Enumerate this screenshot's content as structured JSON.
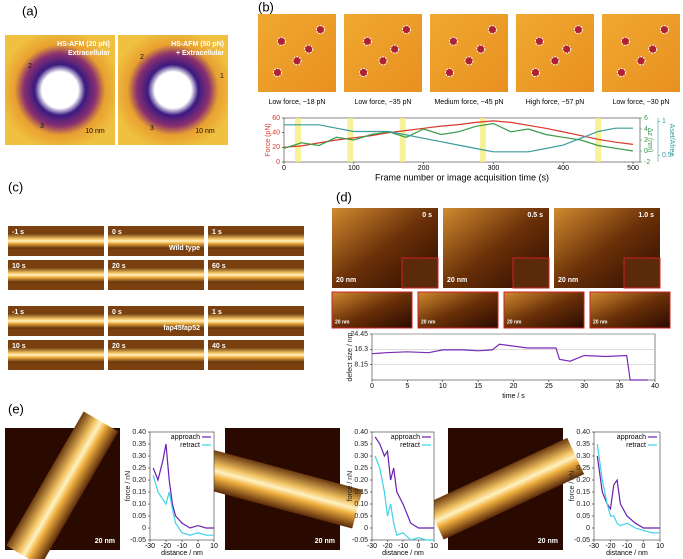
{
  "panels": {
    "a": {
      "label": "(a)",
      "texts": [
        "HS-AFM (20 pN)",
        "Extracellular",
        "10 nm",
        "2",
        "3",
        "HS-AFM (50 pN)",
        "+ Extracellular",
        "2",
        "1",
        "3",
        "10 nm"
      ]
    },
    "b": {
      "label": "(b)",
      "captions": [
        "Low force, ~18 pN",
        "Low force, ~35 pN",
        "Medium force, ~45 pN",
        "High force, ~57 pN",
        "Low force, ~30 pN"
      ]
    },
    "c": {
      "label": "(c)",
      "group1": [
        "-1 s",
        "0 s",
        "1 s",
        "10 s",
        "20 s",
        "60 s"
      ],
      "group1_name": "Wild type",
      "group2": [
        "-1 s",
        "0 s",
        "1 s",
        "10 s",
        "20 s",
        "40 s"
      ],
      "group2_name": "fap45fap52"
    },
    "d": {
      "label": "(d)",
      "times": [
        "0 s",
        "0.5 s",
        "1.0 s"
      ],
      "scale": "20 nm",
      "small_scale": "20 nm"
    },
    "e": {
      "label": "(e)",
      "scale": "20 nm"
    }
  },
  "chart_data": [
    {
      "type": "line",
      "xlabel": "Frame number or image acquisition time (s)",
      "ylabel": "Force (pN)",
      "y2label": "Δz (nm)",
      "y3label": "Aset/Afree",
      "x": [
        0,
        25,
        50,
        75,
        100,
        125,
        150,
        175,
        200,
        225,
        250,
        275,
        300,
        325,
        350,
        375,
        400,
        425,
        450,
        475,
        500
      ],
      "xlim": [
        0,
        510
      ],
      "xticks": [
        0,
        100,
        200,
        300,
        400,
        500
      ],
      "ylim": [
        0,
        60
      ],
      "yticks": [
        0,
        20,
        40,
        60
      ],
      "y2lim": [
        -2,
        6
      ],
      "y2ticks": [
        -2,
        0,
        2,
        4,
        6
      ],
      "y3lim": [
        0.4,
        1.05
      ],
      "y3ticks": [
        0.5,
        1
      ],
      "highlights": [
        20,
        95,
        170,
        285,
        450
      ],
      "series": [
        {
          "name": "Force",
          "color": "#d9382a",
          "values": [
            20,
            22,
            26,
            30,
            33,
            36,
            40,
            43,
            46,
            49,
            51,
            54,
            56,
            54,
            50,
            46,
            41,
            36,
            31,
            27,
            24
          ]
        },
        {
          "name": "Δz",
          "color": "#3a9a4a",
          "axis": "y2",
          "values": [
            0.5,
            1.5,
            1,
            2.5,
            2,
            3,
            3.5,
            2.5,
            4,
            3,
            3.5,
            4.5,
            5,
            3.5,
            4,
            3,
            2.5,
            2,
            1,
            0.5,
            0
          ]
        },
        {
          "name": "Aset/Afree",
          "color": "#3a9c9c",
          "axis": "y3",
          "values": [
            0.95,
            0.95,
            0.95,
            0.9,
            0.85,
            0.85,
            0.85,
            0.8,
            0.75,
            0.7,
            0.65,
            0.6,
            0.55,
            0.55,
            0.55,
            0.6,
            0.65,
            0.75,
            0.85,
            0.9,
            0.9
          ]
        }
      ]
    },
    {
      "type": "line",
      "xlabel": "time / s",
      "ylabel": "defect size / nm",
      "x": [
        0,
        2,
        5,
        8,
        10,
        13,
        15,
        17,
        18,
        20,
        22,
        24,
        26,
        26.5,
        28,
        30,
        33,
        36,
        36.5,
        38,
        39
      ],
      "xlim": [
        0,
        40
      ],
      "xticks": [
        0,
        5,
        10,
        15,
        20,
        25,
        30,
        35,
        40
      ],
      "ylim": [
        0,
        24.45
      ],
      "yticks": [
        8.15,
        16.3,
        24.45
      ],
      "grid": true,
      "series": [
        {
          "name": "defect size",
          "color": "#7a2bb8",
          "values": [
            14,
            14.5,
            15,
            14.5,
            16,
            16,
            15.5,
            16,
            19,
            18,
            17,
            17,
            17,
            11,
            10,
            13,
            12.5,
            13,
            0,
            0,
            0
          ]
        }
      ]
    },
    {
      "type": "line",
      "xlabel": "distance / nm",
      "ylabel": "force / nN",
      "x": [
        -28,
        -25,
        -22,
        -20,
        -18,
        -16,
        -14,
        -10,
        -5,
        0,
        5,
        10
      ],
      "xlim": [
        -30,
        10
      ],
      "xticks": [
        -30,
        -20,
        -10,
        0,
        10
      ],
      "ylim": [
        -0.05,
        0.4
      ],
      "yticks": [
        -0.05,
        0,
        0.05,
        {
          "value": 0.1,
          "label": "0.10"
        },
        0.15,
        {
          "value": 0.2,
          "label": "0.20"
        },
        0.25,
        {
          "value": 0.3,
          "label": "0.30"
        },
        0.35,
        {
          "value": 0.4,
          "label": "0.40"
        }
      ],
      "series": [
        {
          "name": "approach",
          "color": "#6a1fb0",
          "values": [
            0.25,
            0.2,
            0.28,
            0.35,
            0.2,
            0.1,
            0.05,
            0.02,
            0,
            0.01,
            0,
            0
          ]
        },
        {
          "name": "retract",
          "color": "#3fd3e6",
          "values": [
            0.22,
            0.15,
            0.12,
            0.1,
            0.15,
            0.08,
            0.02,
            -0.02,
            -0.03,
            -0.02,
            -0.03,
            -0.03
          ]
        }
      ]
    },
    {
      "type": "line",
      "xlabel": "distance / nm",
      "ylabel": "force / nN",
      "x": [
        -28,
        -25,
        -22,
        -20,
        -18,
        -16,
        -14,
        -10,
        -5,
        0,
        5,
        10
      ],
      "xlim": [
        -30,
        10
      ],
      "xticks": [
        -30,
        -20,
        -10,
        0,
        10
      ],
      "ylim": [
        -0.05,
        0.4
      ],
      "yticks": [
        -0.05,
        0,
        0.05,
        {
          "value": 0.1,
          "label": "0.10"
        },
        0.15,
        {
          "value": 0.2,
          "label": "0.20"
        },
        0.25,
        {
          "value": 0.3,
          "label": "0.30"
        },
        0.35,
        {
          "value": 0.4,
          "label": "0.40"
        }
      ],
      "series": [
        {
          "name": "approach",
          "color": "#6a1fb0",
          "values": [
            0.38,
            0.35,
            0.3,
            0.32,
            0.2,
            0.25,
            0.15,
            0.1,
            0.02,
            0,
            0,
            0
          ]
        },
        {
          "name": "retract",
          "color": "#3fd3e6",
          "values": [
            0.3,
            0.25,
            0.15,
            0.05,
            0.1,
            0.02,
            -0.03,
            -0.02,
            -0.05,
            -0.04,
            -0.05,
            -0.05
          ]
        }
      ]
    },
    {
      "type": "line",
      "xlabel": "distance / nm",
      "ylabel": "force / nN",
      "x": [
        -28,
        -25,
        -22,
        -20,
        -18,
        -16,
        -14,
        -10,
        -5,
        0,
        5,
        10
      ],
      "xlim": [
        -30,
        10
      ],
      "xticks": [
        -30,
        -20,
        -10,
        0,
        10
      ],
      "ylim": [
        -0.05,
        0.4
      ],
      "yticks": [
        -0.05,
        0,
        0.05,
        {
          "value": 0.1,
          "label": "0.10"
        },
        0.15,
        {
          "value": 0.2,
          "label": "0.20"
        },
        0.25,
        {
          "value": 0.3,
          "label": "0.30"
        },
        0.35,
        {
          "value": 0.4,
          "label": "0.40"
        }
      ],
      "series": [
        {
          "name": "approach",
          "color": "#6a1fb0",
          "values": [
            0.3,
            0.15,
            0.1,
            0.08,
            0.18,
            0.2,
            0.1,
            0.05,
            0.02,
            0,
            0,
            0
          ]
        },
        {
          "name": "retract",
          "color": "#3fd3e6",
          "values": [
            0.35,
            0.2,
            0.1,
            0.05,
            0.05,
            0.02,
            0.01,
            0.02,
            0,
            -0.01,
            -0.02,
            -0.02
          ]
        }
      ]
    }
  ]
}
